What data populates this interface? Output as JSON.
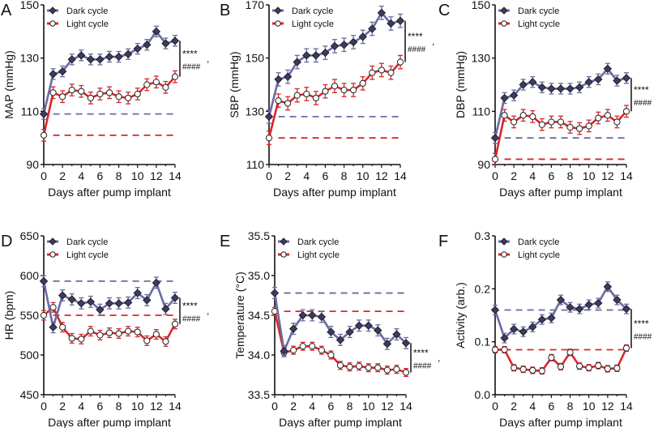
{
  "legend": {
    "dark": "Dark cycle",
    "light": "Light cycle"
  },
  "colors": {
    "dark_line": "#6a6aa3",
    "dark_marker": "#3b3b66",
    "light": "#d9262a",
    "axis": "#111111"
  },
  "chart_data": [
    {
      "panel": "A",
      "type": "line",
      "xlabel": "Days after pump implant",
      "ylabel": "MAP (mmHg)",
      "xlim": [
        0,
        14
      ],
      "ylim": [
        90,
        150
      ],
      "yticks": [
        "90",
        "110",
        "130",
        "150"
      ],
      "xticks": [
        "0",
        "2",
        "4",
        "6",
        "8",
        "10",
        "12",
        "14"
      ],
      "x": [
        0,
        1,
        2,
        3,
        4,
        5,
        6,
        7,
        8,
        9,
        10,
        11,
        12,
        13,
        14
      ],
      "series": [
        {
          "name": "Dark cycle",
          "values": [
            109,
            124,
            125,
            129.5,
            131,
            129.5,
            129.5,
            130.5,
            130.5,
            131.5,
            133.5,
            135,
            140,
            135.5,
            136.5
          ],
          "error": 2,
          "baseline": 109
        },
        {
          "name": "Light cycle",
          "values": [
            101,
            117,
            115.5,
            118,
            117.5,
            115,
            116.5,
            117,
            115.5,
            115,
            116.5,
            120,
            121,
            119,
            123
          ],
          "error": 2.2,
          "baseline": 101
        }
      ],
      "annotation": [
        "****",
        "####",
        ","
      ]
    },
    {
      "panel": "B",
      "type": "line",
      "xlabel": "Days after pump implant",
      "ylabel": "SBP (mmHg)",
      "xlim": [
        0,
        14
      ],
      "ylim": [
        110,
        170
      ],
      "yticks": [
        "110",
        "130",
        "150",
        "170"
      ],
      "xticks": [
        "0",
        "2",
        "4",
        "6",
        "8",
        "10",
        "12",
        "14"
      ],
      "x": [
        0,
        1,
        2,
        3,
        4,
        5,
        6,
        7,
        8,
        9,
        10,
        11,
        12,
        13,
        14
      ],
      "series": [
        {
          "name": "Dark cycle",
          "values": [
            128,
            142,
            143,
            148.5,
            151,
            151,
            152,
            154.5,
            155,
            156,
            158,
            161,
            167,
            163,
            164
          ],
          "error": 2.5,
          "baseline": 128
        },
        {
          "name": "Light cycle",
          "values": [
            120,
            134,
            133,
            136,
            136.5,
            135,
            137.5,
            139.5,
            138,
            138,
            140.5,
            144.5,
            145.5,
            144.5,
            148.5
          ],
          "error": 2.5,
          "baseline": 120
        }
      ],
      "annotation": [
        "****",
        "####",
        ","
      ]
    },
    {
      "panel": "C",
      "type": "line",
      "xlabel": "Days after pump implant",
      "ylabel": "DBP (mmHg)",
      "xlim": [
        0,
        14
      ],
      "ylim": [
        90,
        150
      ],
      "yticks": [
        "90",
        "110",
        "130",
        "150"
      ],
      "xticks": [
        "0",
        "2",
        "4",
        "6",
        "8",
        "10",
        "12",
        "14"
      ],
      "x": [
        0,
        1,
        2,
        3,
        4,
        5,
        6,
        7,
        8,
        9,
        10,
        11,
        12,
        13,
        14
      ],
      "series": [
        {
          "name": "Dark cycle",
          "values": [
            100,
            115,
            116,
            120,
            121,
            119,
            118.5,
            118.5,
            118.5,
            119,
            121,
            122,
            126,
            121.5,
            122.5
          ],
          "error": 2,
          "baseline": 100
        },
        {
          "name": "Light cycle",
          "values": [
            92,
            108.5,
            106,
            108.5,
            108,
            105,
            106,
            106,
            104,
            103.5,
            104.5,
            107.5,
            108.5,
            106,
            110
          ],
          "error": 2.2,
          "baseline": 92
        }
      ],
      "annotation": [
        "****",
        "####",
        ","
      ]
    },
    {
      "panel": "D",
      "type": "line",
      "xlabel": "Days after pump implant",
      "ylabel": "HR (bpm)",
      "xlim": [
        0,
        14
      ],
      "ylim": [
        450,
        650
      ],
      "yticks": [
        "450",
        "500",
        "550",
        "600",
        "650"
      ],
      "xticks": [
        "0",
        "2",
        "4",
        "6",
        "8",
        "10",
        "12",
        "14"
      ],
      "x": [
        0,
        1,
        2,
        3,
        4,
        5,
        6,
        7,
        8,
        9,
        10,
        11,
        12,
        13,
        14
      ],
      "series": [
        {
          "name": "Dark cycle",
          "values": [
            593,
            535,
            575,
            570,
            565,
            567,
            557,
            565,
            565,
            566,
            578,
            569,
            591,
            558,
            572
          ],
          "error": 7,
          "baseline": 593
        },
        {
          "name": "Light cycle",
          "values": [
            550,
            560,
            535,
            521,
            520,
            530,
            525,
            528,
            527,
            530,
            529,
            518,
            526,
            517,
            539
          ],
          "error": 6,
          "baseline": 550
        }
      ],
      "annotation": [
        "****",
        "####",
        ","
      ]
    },
    {
      "panel": "E",
      "type": "line",
      "xlabel": "Days after pump implant",
      "ylabel": "Temperature (°C)",
      "xlim": [
        0,
        14
      ],
      "ylim": [
        33.5,
        35.5
      ],
      "yticks": [
        "33.5",
        "34.0",
        "34.5",
        "35.0",
        "35.5"
      ],
      "xticks": [
        "0",
        "2",
        "4",
        "6",
        "8",
        "10",
        "12",
        "14"
      ],
      "x": [
        0,
        1,
        2,
        3,
        4,
        5,
        6,
        7,
        8,
        9,
        10,
        11,
        12,
        13,
        14
      ],
      "series": [
        {
          "name": "Dark cycle",
          "values": [
            34.78,
            34.05,
            34.33,
            34.5,
            34.5,
            34.48,
            34.29,
            34.19,
            34.29,
            34.37,
            34.37,
            34.31,
            34.14,
            34.26,
            34.15
          ],
          "error": 0.07,
          "baseline": 34.78
        },
        {
          "name": "Light cycle",
          "values": [
            34.55,
            34.03,
            34.06,
            34.11,
            34.11,
            34.06,
            34.0,
            33.87,
            33.85,
            33.86,
            33.84,
            33.84,
            33.81,
            33.82,
            33.78
          ],
          "error": 0.05,
          "baseline": 34.55
        }
      ],
      "annotation": [
        "****",
        "####",
        ","
      ]
    },
    {
      "panel": "F",
      "type": "line",
      "xlabel": "Days after pump implant",
      "ylabel": "Activity (arb.)",
      "xlim": [
        0,
        14
      ],
      "ylim": [
        0,
        0.3
      ],
      "yticks": [
        "0.0",
        "0.1",
        "0.2",
        "0.3"
      ],
      "xticks": [
        "0",
        "2",
        "4",
        "6",
        "8",
        "10",
        "12",
        "14"
      ],
      "x": [
        0,
        1,
        2,
        3,
        4,
        5,
        6,
        7,
        8,
        9,
        10,
        11,
        12,
        13,
        14
      ],
      "series": [
        {
          "name": "Dark cycle",
          "values": [
            0.16,
            0.107,
            0.124,
            0.119,
            0.128,
            0.142,
            0.145,
            0.179,
            0.165,
            0.162,
            0.17,
            0.173,
            0.204,
            0.179,
            0.162
          ],
          "error": 0.009,
          "baseline": 0.16
        },
        {
          "name": "Light cycle",
          "values": [
            0.085,
            0.085,
            0.051,
            0.048,
            0.046,
            0.045,
            0.07,
            0.053,
            0.08,
            0.054,
            0.051,
            0.055,
            0.049,
            0.05,
            0.088
          ],
          "error": 0.006,
          "baseline": 0.085
        }
      ],
      "annotation": [
        "****",
        "####",
        ","
      ]
    }
  ]
}
